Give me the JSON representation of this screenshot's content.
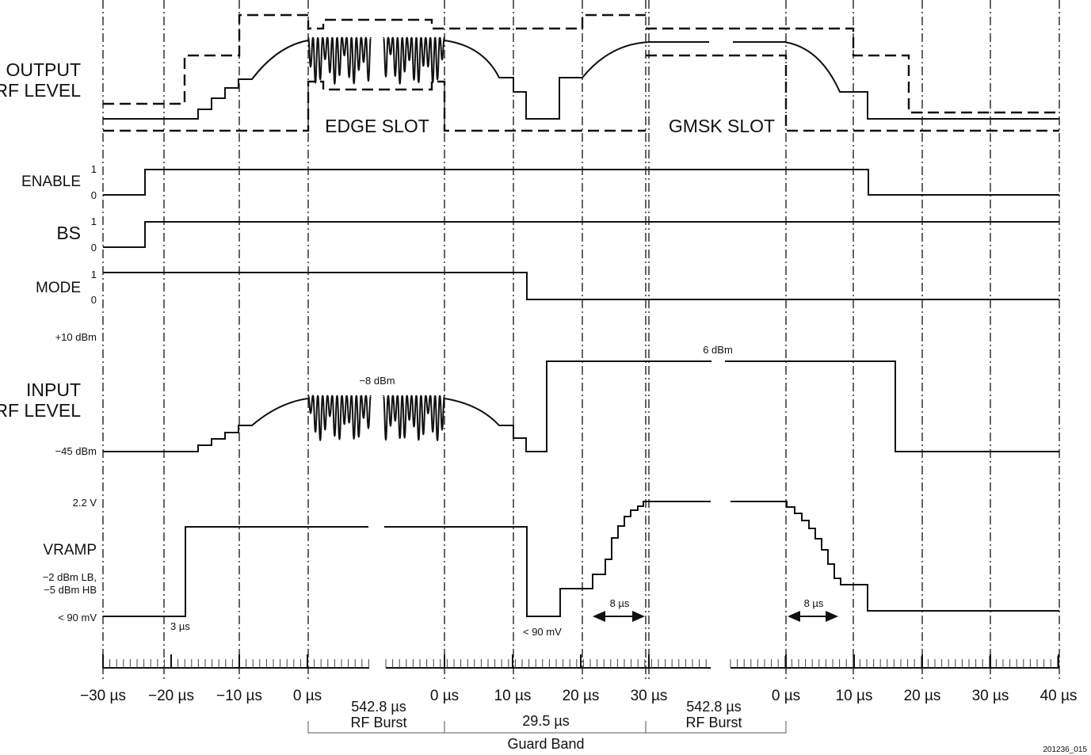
{
  "signals": {
    "output_rf_level": [
      "OUTPUT",
      "RF LEVEL"
    ],
    "enable": "ENABLE",
    "bs": "BS",
    "mode": "MODE",
    "input_rf_level": [
      "INPUT",
      "RF LEVEL"
    ],
    "vramp": "VRAMP"
  },
  "logic_levels": {
    "high": "1",
    "low": "0"
  },
  "input_levels": {
    "top": "+10 dBm",
    "bottom": "−45 dBm"
  },
  "vramp_levels": {
    "high": "2.2 V",
    "mid_line1": "−2 dBm LB,",
    "mid_line2": "−5 dBm HB",
    "low": "< 90 mV"
  },
  "slots": {
    "edge": "EDGE SLOT",
    "gmsk": "GMSK SLOT"
  },
  "annotations": {
    "edge_input_level": "−8 dBm",
    "gmsk_input_level": "6 dBm",
    "enable_delay": "3 µs",
    "guard_low": "< 90 mV",
    "ramp_up_time": "8 µs",
    "ramp_down_time": "8 µs"
  },
  "time_axis": {
    "segment1": [
      "−30 µs",
      "−20 µs",
      "−10 µs",
      "0 µs"
    ],
    "segment2": [
      "0 µs",
      "10 µs",
      "20 µs",
      "30 µs"
    ],
    "segment3": [
      "0 µs",
      "10 µs",
      "20 µs",
      "30 µs",
      "40 µs"
    ]
  },
  "spans": {
    "edge_burst": [
      "542.8 µs",
      "RF Burst"
    ],
    "guard": [
      "29.5 µs",
      "Guard Band"
    ],
    "gmsk_burst": [
      "542.8 µs",
      "RF Burst"
    ]
  },
  "figure_id": "201236_015"
}
